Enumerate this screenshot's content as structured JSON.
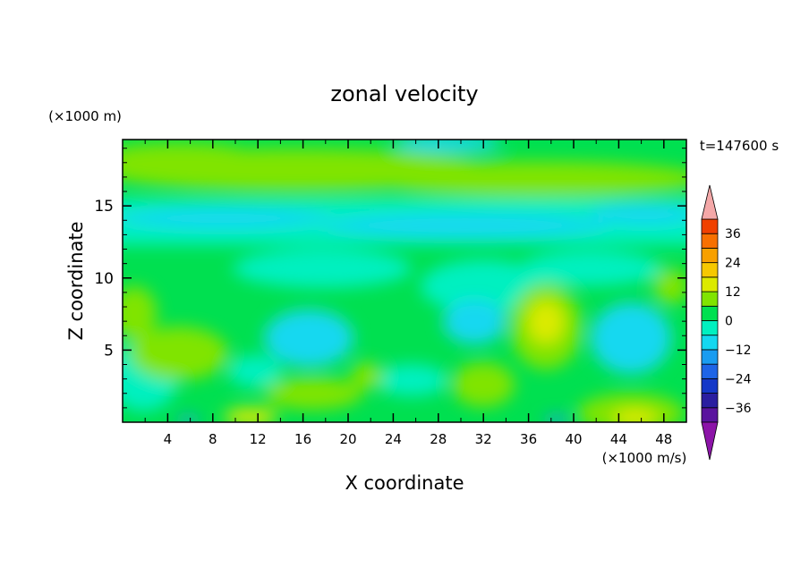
{
  "chart_data": {
    "type": "heatmap",
    "title": "zonal velocity",
    "xlabel": "X coordinate",
    "ylabel": "Z coordinate",
    "x_unit": "(×1000 m/s)",
    "y_unit": "(×1000 m)",
    "time_label": "t=147600 s",
    "xlim": [
      0,
      50
    ],
    "ylim": [
      0,
      19.6
    ],
    "x_ticks": [
      4,
      8,
      12,
      16,
      20,
      24,
      28,
      32,
      36,
      40,
      44,
      48
    ],
    "y_ticks": [
      5,
      10,
      15
    ],
    "colorbar": {
      "levels": [
        -42,
        -36,
        -30,
        -24,
        -18,
        -12,
        -6,
        0,
        6,
        12,
        18,
        24,
        30,
        36,
        42
      ],
      "tick_labels": [
        36,
        24,
        12,
        0,
        -12,
        -24,
        -36
      ],
      "colors": [
        "#5a149e",
        "#2a1ea0",
        "#1438c8",
        "#1e64e6",
        "#1a9cf0",
        "#14d8f0",
        "#00f0c0",
        "#00e050",
        "#80e400",
        "#dcea00",
        "#f6c800",
        "#f8a000",
        "#f87000",
        "#f04000",
        "#e61414"
      ],
      "extend_max_color": "#f4a8a8",
      "extend_min_color": "#8c14a8"
    },
    "field_summary": [
      {
        "region": "z 16-19.6, all x",
        "value_ms": 6
      },
      {
        "region": "z 12-16, all x",
        "value_ms": -8
      },
      {
        "region": "z 19-19.6, x 28-32",
        "value_ms": -18
      },
      {
        "region": "z 2-9, x 36-40",
        "value_ms": 10
      },
      {
        "region": "z 3-7, x 44-48",
        "value_ms": -14
      },
      {
        "region": "z 0-1, x 44-48",
        "value_ms": 14
      },
      {
        "region": "z 0-1, x 10-13",
        "value_ms": 12
      }
    ]
  }
}
